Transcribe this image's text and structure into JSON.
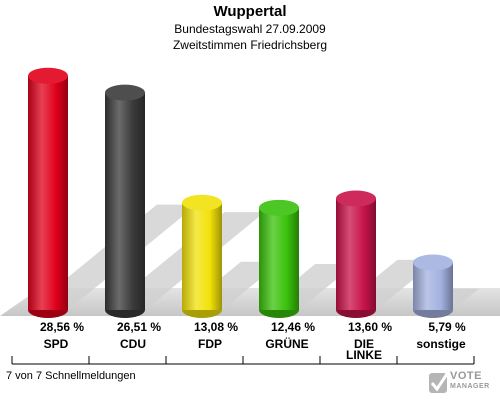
{
  "header": {
    "title": "Wuppertal",
    "subtitle1": "Bundestagswahl 27.09.2009",
    "subtitle2": "Zweitstimmen Friedrichsberg"
  },
  "footer": {
    "status": "7 von 7 Schnellmeldungen"
  },
  "logo": {
    "line1": "VOTE",
    "line2": "MANAGER",
    "icon": "vote-manager-check-icon"
  },
  "chart_data": {
    "type": "bar",
    "title": "Wuppertal",
    "subtitle": "Bundestagswahl 27.09.2009 Zweitstimmen Friedrichsberg",
    "categories": [
      "SPD",
      "CDU",
      "FDP",
      "GRÜNE",
      "DIE LINKE",
      "sonstige"
    ],
    "category_lines": [
      [
        "SPD"
      ],
      [
        "CDU"
      ],
      [
        "FDP"
      ],
      [
        "GRÜNE"
      ],
      [
        "DIE",
        "LINKE"
      ],
      [
        "sonstige"
      ]
    ],
    "values": [
      28.56,
      26.51,
      13.08,
      12.46,
      13.6,
      5.79
    ],
    "value_labels": [
      "28,56 %",
      "26,51 %",
      "13,08 %",
      "12,46 %",
      "13,60 %",
      "5,79 %"
    ],
    "colors": [
      "#e0001b",
      "#3a3a3a",
      "#f2e10a",
      "#39c10a",
      "#c8124a",
      "#a3b1e0"
    ],
    "ylim": [
      0,
      30
    ],
    "grid": false,
    "legend": "none"
  }
}
